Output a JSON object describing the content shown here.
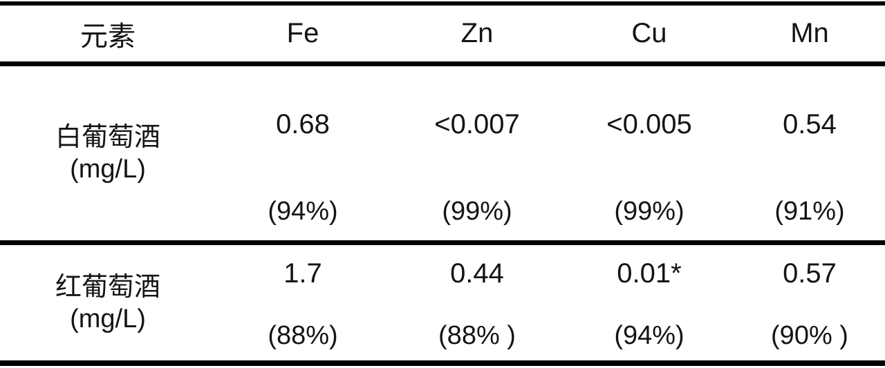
{
  "table": {
    "header": {
      "element_label": "元素",
      "columns": [
        "Fe",
        "Zn",
        "Cu",
        "Mn"
      ]
    },
    "sections": [
      {
        "label_line1": "白葡萄酒",
        "label_line2": "(mg/L)",
        "values": [
          "0.68",
          "<0.007",
          "<0.005",
          "0.54"
        ],
        "recoveries": [
          "(94%)",
          "(99%)",
          "(99%)",
          "(91%)"
        ]
      },
      {
        "label_line1": "红葡萄酒",
        "label_line2": "(mg/L)",
        "values": [
          "1.7",
          "0.44",
          "0.01*",
          "0.57"
        ],
        "recoveries": [
          "(88%)",
          "(88% )",
          "(94%)",
          "(90% )"
        ]
      }
    ]
  },
  "chart_data": {
    "type": "table",
    "columns": [
      "元素",
      "Fe",
      "Zn",
      "Cu",
      "Mn"
    ],
    "rows": [
      {
        "sample": "白葡萄酒 (mg/L)",
        "Fe": "0.68",
        "Zn": "<0.007",
        "Cu": "<0.005",
        "Mn": "0.54",
        "recovery_Fe": "94%",
        "recovery_Zn": "99%",
        "recovery_Cu": "99%",
        "recovery_Mn": "91%"
      },
      {
        "sample": "红葡萄酒 (mg/L)",
        "Fe": "1.7",
        "Zn": "0.44",
        "Cu": "0.01*",
        "Mn": "0.57",
        "recovery_Fe": "88%",
        "recovery_Zn": "88%",
        "recovery_Cu": "94%",
        "recovery_Mn": "90%"
      }
    ]
  }
}
